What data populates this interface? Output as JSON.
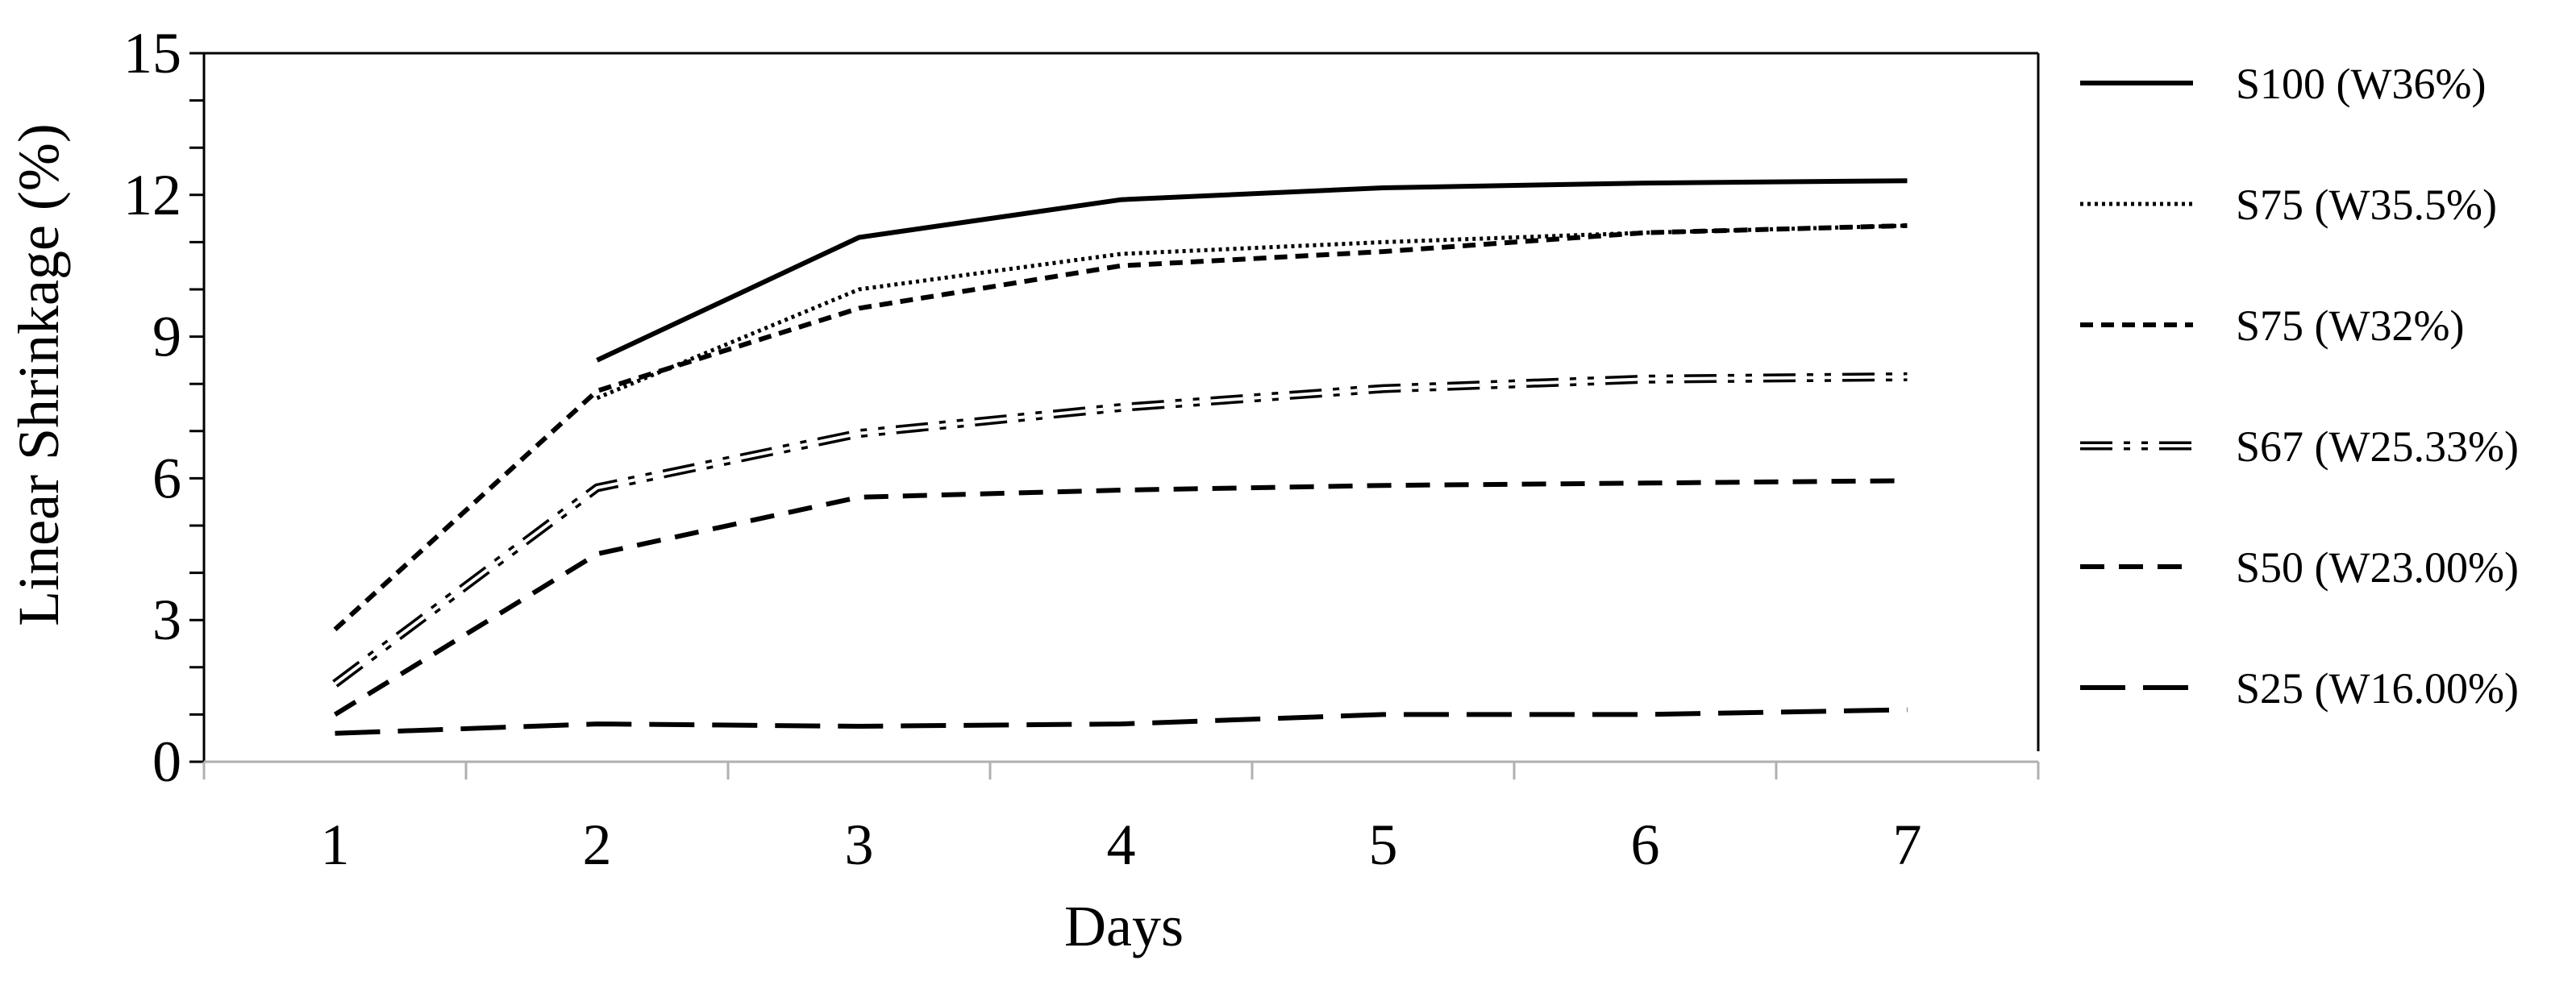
{
  "chart_data": {
    "type": "line",
    "title": "",
    "xlabel": "Days",
    "ylabel": "Linear Shrinkage (%)",
    "x": [
      1,
      2,
      3,
      4,
      5,
      6,
      7
    ],
    "x_ticks": [
      "1",
      "2",
      "3",
      "4",
      "5",
      "6",
      "7"
    ],
    "xlim": [
      0.5,
      7.5
    ],
    "ylim": [
      0,
      15
    ],
    "y_ticks": [
      "0",
      "3",
      "6",
      "9",
      "12",
      "15"
    ],
    "y_minor_step": 1,
    "grid": false,
    "legend_position": "right",
    "series": [
      {
        "name": "S100 (W36%)",
        "style": "solid",
        "color": "#000000",
        "values": [
          null,
          8.5,
          11.1,
          11.9,
          12.15,
          12.25,
          12.3
        ]
      },
      {
        "name": "S75 (W35.5%)",
        "style": "dotted",
        "color": "#000000",
        "values": [
          null,
          7.7,
          10.0,
          10.75,
          11.0,
          11.2,
          11.35
        ]
      },
      {
        "name": "S75 (W32%)",
        "style": "dashed-short",
        "color": "#000000",
        "values": [
          2.8,
          7.85,
          9.6,
          10.5,
          10.8,
          11.2,
          11.35
        ]
      },
      {
        "name": "S67 (W25.33%)",
        "style": "dash-dot-dot-double",
        "color": "#000000",
        "values": [
          1.65,
          5.8,
          6.95,
          7.5,
          7.9,
          8.1,
          8.15
        ]
      },
      {
        "name": "S50 (W23.00%)",
        "style": "dashed-medium",
        "color": "#000000",
        "values": [
          1.0,
          4.4,
          5.6,
          5.75,
          5.85,
          5.9,
          5.95
        ]
      },
      {
        "name": "S25 (W16.00%)",
        "style": "dashed-long",
        "color": "#000000",
        "values": [
          0.6,
          0.8,
          0.75,
          0.8,
          1.0,
          1.0,
          1.1
        ]
      }
    ]
  }
}
